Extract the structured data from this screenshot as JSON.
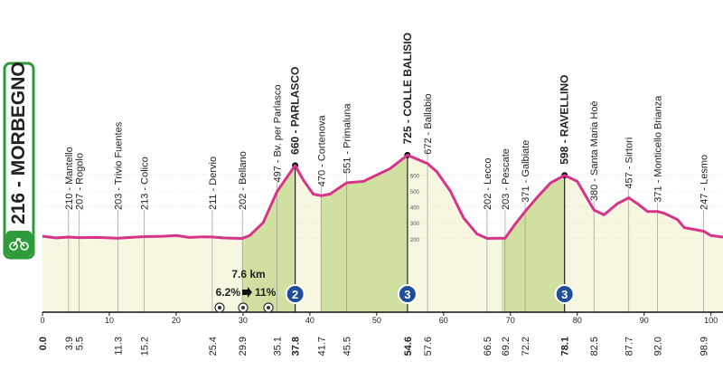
{
  "chart_data": {
    "type": "profile",
    "x": [
      0,
      2,
      3.9,
      5.5,
      8,
      10,
      11.3,
      14,
      15.2,
      18,
      20,
      22,
      24,
      25.4,
      27,
      29.9,
      31,
      33,
      35.1,
      37.8,
      39,
      40.5,
      41.7,
      43,
      45.5,
      48,
      50,
      52,
      54.6,
      56,
      57.6,
      59,
      61,
      63,
      65,
      66.5,
      68,
      69.2,
      70.5,
      72.2,
      74,
      76,
      78.1,
      80,
      82.5,
      84,
      86,
      87.7,
      89,
      90.5,
      92,
      93,
      95,
      96,
      98.9,
      100,
      101.8
    ],
    "values": [
      216,
      205,
      210,
      207,
      208,
      205,
      203,
      210,
      213,
      215,
      220,
      208,
      212,
      211,
      205,
      202,
      220,
      300,
      497,
      660,
      570,
      480,
      470,
      480,
      551,
      560,
      600,
      640,
      725,
      700,
      672,
      620,
      500,
      330,
      230,
      202,
      203,
      203,
      280,
      371,
      460,
      550,
      598,
      560,
      380,
      350,
      420,
      457,
      420,
      371,
      371,
      360,
      320,
      270,
      247,
      220,
      210
    ],
    "color": "#d6338a",
    "xlim": [
      0,
      101.8
    ],
    "xticks": [
      0,
      10,
      20,
      30,
      40,
      50,
      60,
      70,
      80,
      90,
      100
    ],
    "scale_labels": [
      600,
      500,
      400,
      300,
      200
    ],
    "start": {
      "label": "216 - MORBEGNO",
      "km": {
        "value": 0,
        "label": "0.0"
      }
    },
    "waypoints": [
      {
        "km": 3.9,
        "label": "210 - Mantello",
        "bold": false
      },
      {
        "km": 5.5,
        "label": "207 - Rogolo",
        "bold": false
      },
      {
        "km": 11.3,
        "label": "203 - Trivio Fuentes",
        "bold": false
      },
      {
        "km": 15.2,
        "label": "213 - Colico",
        "bold": false
      },
      {
        "km": 25.4,
        "label": "211 - Dervio",
        "bold": false
      },
      {
        "km": 29.9,
        "label": "202 - Bellano",
        "bold": false
      },
      {
        "km": 35.1,
        "label": "497 - Bv. per Parlasco",
        "bold": false
      },
      {
        "km": 37.8,
        "label": "660 - PARLASCO",
        "bold": true
      },
      {
        "km": 41.7,
        "label": "470 - Cortenova",
        "bold": false
      },
      {
        "km": 45.5,
        "label": "551 - Primaluna",
        "bold": false
      },
      {
        "km": 54.6,
        "label": "725 - COLLE BALISIO",
        "bold": true
      },
      {
        "km": 57.6,
        "label": "672 - Ballabio",
        "bold": false
      },
      {
        "km": 66.5,
        "label": "202 - Lecco",
        "bold": false
      },
      {
        "km": 69.2,
        "label": "203 - Pescate",
        "bold": false
      },
      {
        "km": 72.2,
        "label": "371 - Galbiate",
        "bold": false
      },
      {
        "km": 78.1,
        "label": "598 - RAVELLINO",
        "bold": true
      },
      {
        "km": 82.5,
        "label": "380 - Santa Maria Hoè",
        "bold": false
      },
      {
        "km": 87.7,
        "label": "457 - Sirtori",
        "bold": false
      },
      {
        "km": {
          "value": 92,
          "label": "92.0"
        },
        "label": "371 - Monticello Brianza",
        "bold": false
      },
      {
        "km": 98.9,
        "label": "247 - Lesmo",
        "bold": false
      }
    ],
    "climbs": [
      {
        "category": "2",
        "start_km": 29.9,
        "km": 37.8
      },
      {
        "category": "3",
        "start_km": 41.6,
        "km": 54.6
      },
      {
        "category": "3",
        "start_km": 68.7,
        "km": 78.1
      }
    ],
    "gradient": {
      "length": "7.6 km",
      "average": "6.2%",
      "max": "11%"
    }
  }
}
